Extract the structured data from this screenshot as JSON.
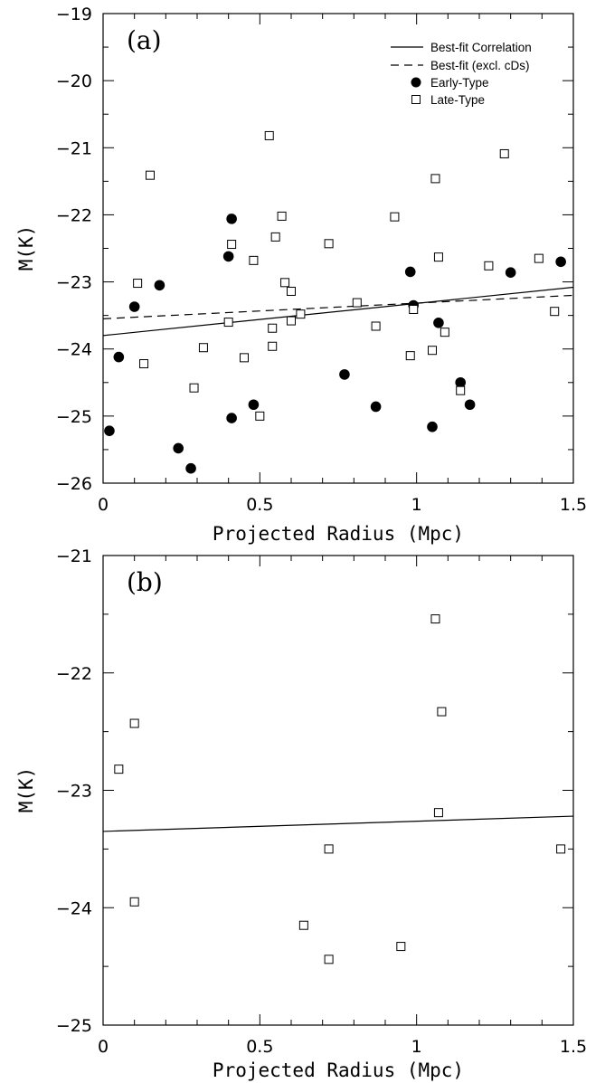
{
  "chart_data": [
    {
      "type": "scatter",
      "panel_label": "(a)",
      "xlabel": "Projected Radius (Mpc)",
      "ylabel": "M(K)",
      "xlim": [
        0,
        1.5
      ],
      "ylim": [
        -26,
        -19
      ],
      "y_inverted": true,
      "x_tick_labels": [
        "0",
        "0.5",
        "1",
        "1.5"
      ],
      "y_tick_labels": [
        "−19",
        "−20",
        "−21",
        "−22",
        "−23",
        "−24",
        "−25",
        "−26"
      ],
      "legend": {
        "position": "top-right",
        "entries": [
          "Best-fit Correlation",
          "Best-fit (excl. cDs)",
          "Early-Type",
          "Late-Type"
        ]
      },
      "lines": [
        {
          "name": "Best-fit Correlation",
          "style": "solid",
          "x": [
            0,
            1.5
          ],
          "y": [
            -23.8,
            -23.08
          ]
        },
        {
          "name": "Best-fit (excl. cDs)",
          "style": "dashed",
          "x": [
            0,
            1.5
          ],
          "y": [
            -23.55,
            -23.2
          ]
        }
      ],
      "series": [
        {
          "name": "Early-Type",
          "marker": "filled-circle",
          "points": [
            [
              0.02,
              -25.22
            ],
            [
              0.05,
              -24.12
            ],
            [
              0.1,
              -23.37
            ],
            [
              0.18,
              -23.05
            ],
            [
              0.24,
              -25.48
            ],
            [
              0.28,
              -25.78
            ],
            [
              0.4,
              -22.62
            ],
            [
              0.41,
              -22.06
            ],
            [
              0.41,
              -25.03
            ],
            [
              0.48,
              -24.83
            ],
            [
              0.77,
              -24.38
            ],
            [
              0.87,
              -24.86
            ],
            [
              0.98,
              -22.85
            ],
            [
              0.99,
              -23.35
            ],
            [
              1.05,
              -25.16
            ],
            [
              1.07,
              -23.61
            ],
            [
              1.14,
              -24.5
            ],
            [
              1.17,
              -24.83
            ],
            [
              1.3,
              -22.86
            ],
            [
              1.46,
              -22.7
            ]
          ]
        },
        {
          "name": "Late-Type",
          "marker": "open-square",
          "points": [
            [
              0.11,
              -23.02
            ],
            [
              0.13,
              -24.22
            ],
            [
              0.15,
              -21.41
            ],
            [
              0.29,
              -24.58
            ],
            [
              0.32,
              -23.98
            ],
            [
              0.4,
              -23.6
            ],
            [
              0.41,
              -22.44
            ],
            [
              0.45,
              -24.13
            ],
            [
              0.48,
              -22.68
            ],
            [
              0.5,
              -25.0
            ],
            [
              0.53,
              -20.82
            ],
            [
              0.54,
              -23.96
            ],
            [
              0.54,
              -23.69
            ],
            [
              0.55,
              -22.33
            ],
            [
              0.57,
              -22.02
            ],
            [
              0.58,
              -23.01
            ],
            [
              0.6,
              -23.58
            ],
            [
              0.6,
              -23.14
            ],
            [
              0.63,
              -23.48
            ],
            [
              0.72,
              -22.43
            ],
            [
              0.81,
              -23.31
            ],
            [
              0.87,
              -23.66
            ],
            [
              0.93,
              -22.03
            ],
            [
              0.98,
              -24.1
            ],
            [
              0.99,
              -23.41
            ],
            [
              1.05,
              -24.02
            ],
            [
              1.06,
              -21.46
            ],
            [
              1.07,
              -22.63
            ],
            [
              1.09,
              -23.75
            ],
            [
              1.14,
              -24.62
            ],
            [
              1.23,
              -22.76
            ],
            [
              1.28,
              -21.09
            ],
            [
              1.39,
              -22.65
            ],
            [
              1.44,
              -23.44
            ]
          ]
        }
      ]
    },
    {
      "type": "scatter",
      "panel_label": "(b)",
      "xlabel": "Projected Radius (Mpc)",
      "ylabel": "M(K)",
      "xlim": [
        0,
        1.5
      ],
      "ylim": [
        -25,
        -21
      ],
      "y_inverted": true,
      "x_tick_labels": [
        "0",
        "0.5",
        "1",
        "1.5"
      ],
      "y_tick_labels": [
        "−21",
        "−22",
        "−23",
        "−24",
        "−25"
      ],
      "lines": [
        {
          "style": "solid",
          "x": [
            0,
            1.5
          ],
          "y": [
            -23.35,
            -23.22
          ]
        }
      ],
      "series": [
        {
          "marker": "open-square",
          "points": [
            [
              0.05,
              -22.82
            ],
            [
              0.1,
              -22.43
            ],
            [
              0.1,
              -23.95
            ],
            [
              0.64,
              -24.15
            ],
            [
              0.72,
              -23.5
            ],
            [
              0.72,
              -24.44
            ],
            [
              0.95,
              -24.33
            ],
            [
              1.06,
              -21.54
            ],
            [
              1.07,
              -23.19
            ],
            [
              1.08,
              -22.33
            ],
            [
              1.46,
              -23.5
            ]
          ]
        }
      ]
    }
  ]
}
